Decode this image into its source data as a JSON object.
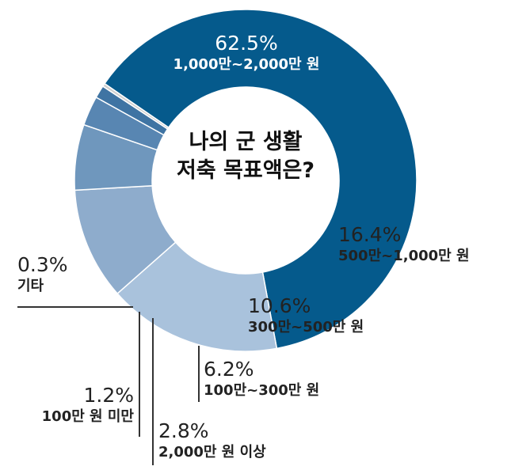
{
  "chart_data": {
    "type": "pie",
    "title": "나의 군 생활 저축 목표액은?",
    "title_lines": [
      "나의 군 생활",
      "저축 목표액은?"
    ],
    "slices": [
      {
        "percent": "62.5%",
        "value": 62.5,
        "label": "1,000만~2,000만 원",
        "color": "#055a8c"
      },
      {
        "percent": "16.4%",
        "value": 16.4,
        "label": "500만~1,000만 원",
        "color": "#a9c2dc"
      },
      {
        "percent": "10.6%",
        "value": 10.6,
        "label": "300만~500만 원",
        "color": "#8eaccc"
      },
      {
        "percent": "6.2%",
        "value": 6.2,
        "label": "100만~300만 원",
        "color": "#6f97bd"
      },
      {
        "percent": "2.8%",
        "value": 2.8,
        "label": "2,000만 원 이상",
        "color": "#5886b2"
      },
      {
        "percent": "1.2%",
        "value": 1.2,
        "label": "100만 원 미만",
        "color": "#3f74a3"
      },
      {
        "percent": "0.3%",
        "value": 0.3,
        "label": "기타",
        "color": "#d0d0d0"
      }
    ]
  }
}
